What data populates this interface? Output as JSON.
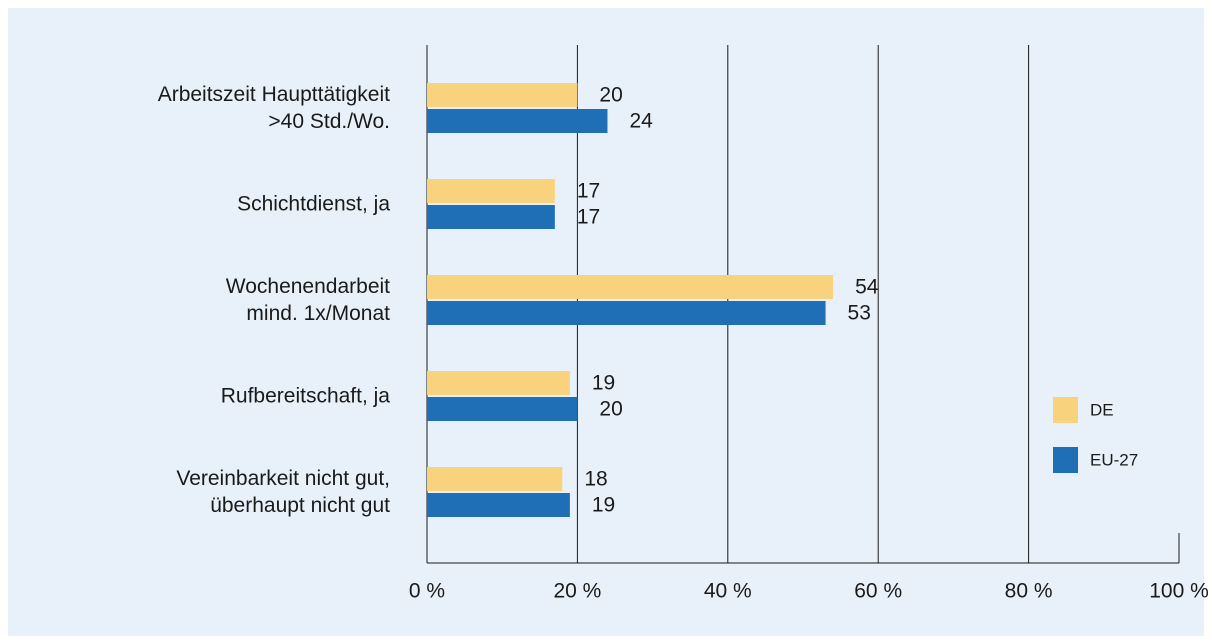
{
  "chart_data": {
    "type": "bar",
    "orientation": "horizontal",
    "categories": [
      "Arbeitszeit Haupttätigkeit\n>40 Std./Wo.",
      "Schichtdienst, ja",
      "Wochenendarbeit\nmind. 1x/Monat",
      "Rufbereitschaft, ja",
      "Vereinbarkeit nicht gut,\nüberhaupt nicht gut"
    ],
    "series": [
      {
        "name": "DE",
        "color": "#f9d27e",
        "values": [
          20,
          17,
          54,
          19,
          18
        ]
      },
      {
        "name": "EU-27",
        "color": "#1f6fb7",
        "values": [
          24,
          17,
          53,
          20,
          19
        ]
      }
    ],
    "xlim": [
      0,
      100
    ],
    "xticks": [
      {
        "value": 0,
        "label": "0 %"
      },
      {
        "value": 20,
        "label": "20 %"
      },
      {
        "value": 40,
        "label": "40 %"
      },
      {
        "value": 60,
        "label": "60 %"
      },
      {
        "value": 80,
        "label": "80 %"
      },
      {
        "value": 100,
        "label": "100 %"
      }
    ],
    "grid": true,
    "legend": "right"
  }
}
